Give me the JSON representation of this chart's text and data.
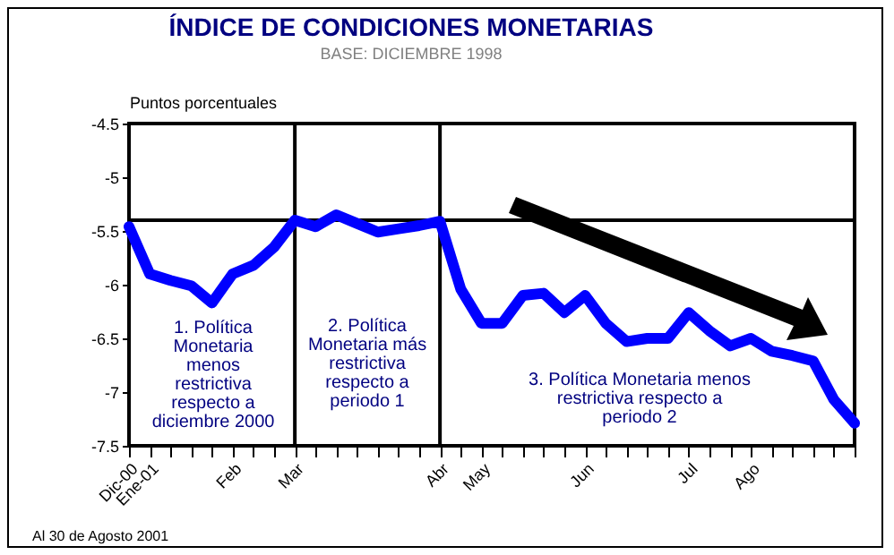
{
  "chart_data": {
    "type": "line",
    "title": "ÍNDICE DE CONDICIONES MONETARIAS",
    "subtitle": "BASE: DICIEMBRE 1998",
    "ylabel": "Puntos porcentuales",
    "annotations": [
      "1. Política\nMonetaria\nmenos\nrestrictiva\nrespecto a\ndiciembre 2000",
      "2. Política\nMonetaria más\nrestrictiva\nrespecto a\nperiodo 1",
      "3. Política Monetaria menos\nrestrictiva respecto a\nperiodo 2",
      "Al 30 de Agosto 2001"
    ],
    "categories": [
      "Dic-00",
      "Ene-01",
      null,
      null,
      null,
      "Feb",
      null,
      null,
      "Mar",
      null,
      null,
      null,
      null,
      null,
      null,
      "Abr",
      null,
      "May",
      null,
      null,
      null,
      null,
      "Jun",
      null,
      null,
      null,
      null,
      "Jul",
      null,
      null,
      "Ago",
      null,
      null,
      null,
      null,
      null
    ],
    "series": [
      {
        "color": "#0000ff",
        "values": [
          -5.46,
          -5.9,
          -5.96,
          -6.01,
          -6.17,
          -5.9,
          -5.82,
          -5.65,
          -5.4,
          -5.46,
          -5.35,
          -5.43,
          -5.51,
          -5.48,
          -5.45,
          -5.41,
          -6.04,
          -6.36,
          -6.36,
          -6.1,
          -6.08,
          -6.26,
          -6.1,
          -6.36,
          -6.53,
          -6.5,
          -6.5,
          -6.26,
          -6.43,
          -6.57,
          -6.5,
          -6.62,
          -6.66,
          -6.71,
          -7.07,
          -7.29
        ]
      }
    ],
    "ylim": [
      -7.5,
      -4.5
    ],
    "yticks": [
      -7.5,
      -7,
      -6.5,
      -6,
      -5.5,
      -5,
      -4.5
    ],
    "ref_lines": [
      {
        "axis": "y",
        "value": -5.4,
        "color": "#000000"
      },
      {
        "axis": "x",
        "value": "Mar",
        "color": "#000000"
      },
      {
        "axis": "x",
        "value": "Abr",
        "color": "#000000"
      }
    ],
    "grid": false,
    "marker": "none",
    "line_style": "solid"
  }
}
